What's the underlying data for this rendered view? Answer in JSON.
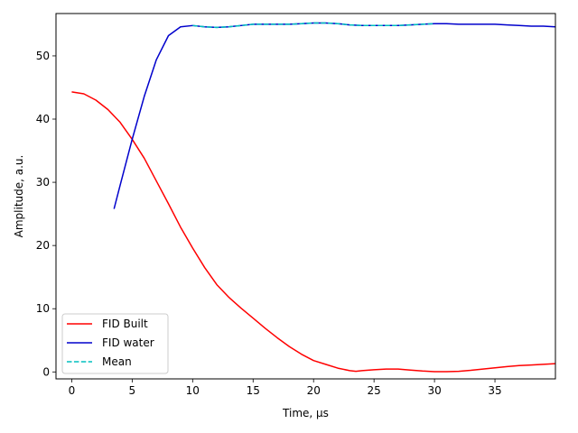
{
  "chart_data": {
    "type": "line",
    "title": "",
    "xlabel": "Time, μs",
    "ylabel": "Amplitude, a.u.",
    "xlim": [
      -1.3,
      40
    ],
    "ylim": [
      -1.1,
      56.7
    ],
    "xticks": [
      0,
      5,
      10,
      15,
      20,
      25,
      30,
      35
    ],
    "yticks": [
      0,
      10,
      20,
      30,
      40,
      50
    ],
    "grid": false,
    "legend_position": "lower-left",
    "series": [
      {
        "name": "FID Built",
        "color": "#ff0000",
        "style": "solid",
        "x": [
          0,
          1,
          2,
          3,
          4,
          5,
          6,
          7,
          8,
          9,
          10,
          11,
          12,
          13,
          14,
          15,
          16,
          17,
          18,
          19,
          20,
          21,
          22,
          23,
          23.5,
          24,
          25,
          26,
          27,
          28,
          29,
          30,
          31,
          32,
          33,
          34,
          35,
          36,
          37,
          38,
          39,
          40
        ],
        "y": [
          44.3,
          44.0,
          43.0,
          41.5,
          39.5,
          36.8,
          33.8,
          30.2,
          26.6,
          22.9,
          19.6,
          16.5,
          13.8,
          11.8,
          10.1,
          8.5,
          6.9,
          5.4,
          4.0,
          2.8,
          1.8,
          1.2,
          0.6,
          0.2,
          0.1,
          0.2,
          0.35,
          0.45,
          0.45,
          0.3,
          0.15,
          0.05,
          0.05,
          0.1,
          0.25,
          0.45,
          0.65,
          0.85,
          1.0,
          1.1,
          1.2,
          1.3
        ]
      },
      {
        "name": "FID water",
        "color": "#0000cc",
        "style": "solid",
        "x": [
          3.5,
          4,
          5,
          6,
          7,
          8,
          9,
          10,
          11,
          12,
          13,
          14,
          15,
          16,
          17,
          18,
          19,
          20,
          21,
          22,
          23,
          24,
          25,
          26,
          27,
          28,
          29,
          30,
          31,
          32,
          33,
          34,
          35,
          36,
          37,
          38,
          39,
          40
        ],
        "y": [
          25.8,
          29.5,
          36.8,
          43.6,
          49.4,
          53.2,
          54.6,
          54.8,
          54.6,
          54.5,
          54.6,
          54.8,
          55.0,
          55.0,
          55.0,
          55.0,
          55.1,
          55.2,
          55.2,
          55.1,
          54.9,
          54.8,
          54.8,
          54.8,
          54.8,
          54.9,
          55.0,
          55.1,
          55.1,
          55.0,
          55.0,
          55.0,
          55.0,
          54.9,
          54.8,
          54.7,
          54.7,
          54.6
        ]
      },
      {
        "name": "Mean",
        "color": "#00bfbf",
        "style": "dashed",
        "x": [
          10,
          11,
          12,
          13,
          14,
          15,
          16,
          17,
          18,
          19,
          20,
          21,
          22,
          23,
          24,
          25,
          26,
          27,
          28,
          29,
          30
        ],
        "y": [
          54.8,
          54.6,
          54.5,
          54.6,
          54.8,
          55.0,
          55.0,
          55.0,
          55.0,
          55.1,
          55.2,
          55.2,
          55.1,
          54.9,
          54.8,
          54.8,
          54.8,
          54.8,
          54.9,
          55.0,
          55.1
        ]
      }
    ]
  }
}
